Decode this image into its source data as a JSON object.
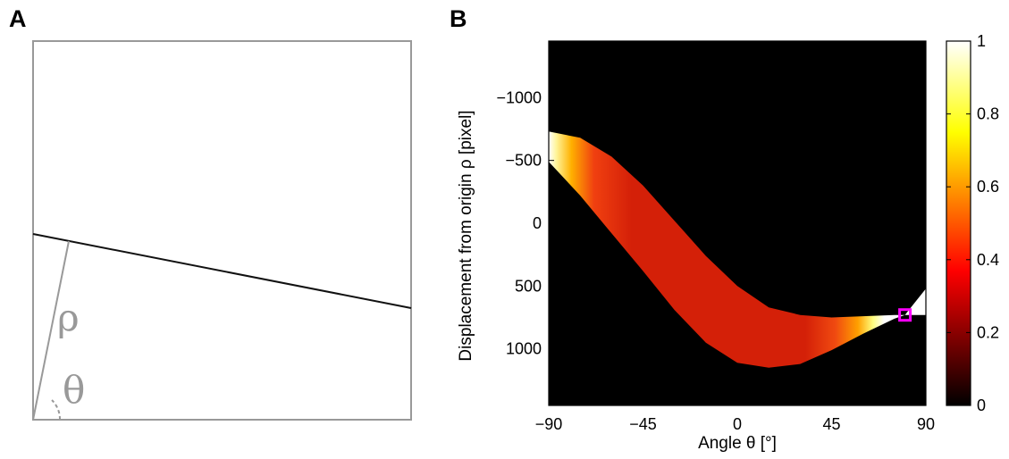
{
  "panels": {
    "a_label": "A",
    "b_label": "B"
  },
  "panel_a": {
    "rho_symbol": "ρ",
    "theta_symbol": "θ",
    "colors": {
      "frame": "#999999",
      "line": "#111111",
      "guide": "#999999"
    }
  },
  "chart_data": {
    "type": "heatmap",
    "title": "",
    "xlabel": "Angle θ [°]",
    "ylabel": "Displacement from origin ρ [pixel]",
    "xlim": [
      -90,
      90
    ],
    "ylim": [
      1450,
      -1450
    ],
    "y_axis_reversed": true,
    "x_ticks": [
      -90,
      -45,
      0,
      45,
      90
    ],
    "x_tick_labels": [
      "−90",
      "−45",
      "0",
      "45",
      "90"
    ],
    "y_ticks": [
      -1000,
      -500,
      0,
      500,
      1000
    ],
    "y_tick_labels": [
      "−1000",
      "−500",
      "0",
      "500",
      "1000"
    ],
    "band": {
      "description_values": "Hough transform of image in panel A; band bounded by curves rho(theta)",
      "upper_boundary": {
        "theta": [
          -90,
          -75,
          -60,
          -45,
          -30,
          -15,
          0,
          15,
          30,
          45,
          60,
          75,
          80,
          90
        ],
        "rho": [
          -730,
          -680,
          -530,
          -300,
          -20,
          260,
          500,
          670,
          730,
          750,
          740,
          730,
          730,
          730
        ]
      },
      "lower_boundary": {
        "theta": [
          -90,
          -75,
          -60,
          -45,
          -30,
          -15,
          0,
          15,
          30,
          45,
          60,
          75,
          80,
          90
        ],
        "rho": [
          -490,
          -220,
          80,
          380,
          690,
          950,
          1110,
          1150,
          1120,
          1010,
          880,
          760,
          730,
          520
        ]
      }
    },
    "peak_marker": {
      "theta": 80,
      "rho": 730,
      "color": "#ff00ff"
    },
    "colorbar": {
      "min": 0,
      "max": 1,
      "ticks": [
        0,
        0.2,
        0.4,
        0.6,
        0.8,
        1
      ],
      "tick_labels": [
        "0",
        "0.2",
        "0.4",
        "0.6",
        "0.8",
        "1"
      ],
      "colormap": "hot"
    },
    "colors": {
      "background": "#000000",
      "band_mid": "#d42008",
      "marker": "#ff00ff"
    }
  }
}
